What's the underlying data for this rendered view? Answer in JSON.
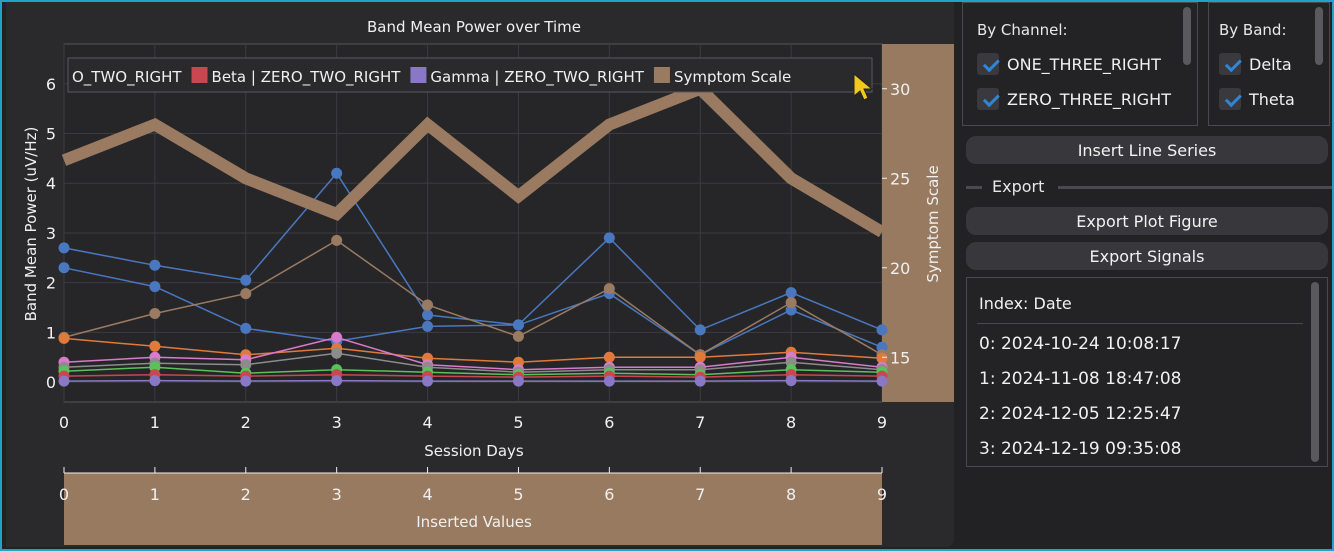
{
  "plot": {
    "title": "Band Mean Power over Time",
    "legend": [
      {
        "label": "O_TWO_RIGHT",
        "color": null
      },
      {
        "label": "Beta  | ZERO_TWO_RIGHT",
        "color": "#c9474f"
      },
      {
        "label": "Gamma | ZERO_TWO_RIGHT",
        "color": "#8a78c6"
      },
      {
        "label": "Symptom Scale",
        "color": "#9a7b62"
      }
    ],
    "inserted_label": "Inserted Values"
  },
  "chart_data": {
    "type": "line",
    "xlabel": "Session Days",
    "ylabel": "Band Mean Power (uV/Hz)",
    "y2label": "Symptom Scale",
    "x": [
      0,
      1,
      2,
      3,
      4,
      5,
      6,
      7,
      8,
      9
    ],
    "xlim": [
      0,
      9
    ],
    "ylim": [
      -0.4,
      6.8
    ],
    "y2lim": [
      12.5,
      32.5
    ],
    "yticks": [
      0,
      1,
      2,
      3,
      4,
      5,
      6
    ],
    "y2ticks": [
      15,
      20,
      25,
      30
    ],
    "grid": true,
    "legend_position": "top",
    "series": [
      {
        "name": "",
        "axis": "left",
        "color": "#4a78c0",
        "values": [
          2.7,
          2.35,
          2.05,
          4.2,
          1.35,
          1.15,
          2.9,
          1.05,
          1.8,
          1.05
        ]
      },
      {
        "name": "",
        "axis": "left",
        "color": "#4a78c0",
        "values": [
          2.3,
          1.92,
          1.08,
          0.82,
          1.12,
          1.15,
          1.78,
          0.55,
          1.45,
          0.7
        ]
      },
      {
        "name": "",
        "axis": "left",
        "color": "#9a7b62",
        "values": [
          0.9,
          1.38,
          1.78,
          2.85,
          1.55,
          0.92,
          1.88,
          0.55,
          1.6,
          0.55
        ]
      },
      {
        "name": "",
        "axis": "left",
        "color": "#e07a3a",
        "values": [
          0.88,
          0.72,
          0.55,
          0.68,
          0.48,
          0.4,
          0.5,
          0.5,
          0.6,
          0.48
        ]
      },
      {
        "name": "",
        "axis": "left",
        "color": "#d97acb",
        "values": [
          0.4,
          0.5,
          0.45,
          0.9,
          0.35,
          0.25,
          0.3,
          0.3,
          0.5,
          0.3
        ]
      },
      {
        "name": "",
        "axis": "left",
        "color": "#8c8c8c",
        "values": [
          0.3,
          0.38,
          0.35,
          0.58,
          0.3,
          0.2,
          0.25,
          0.25,
          0.4,
          0.25
        ]
      },
      {
        "name": "",
        "axis": "left",
        "color": "#59c25a",
        "values": [
          0.22,
          0.3,
          0.18,
          0.25,
          0.2,
          0.15,
          0.18,
          0.15,
          0.25,
          0.2
        ]
      },
      {
        "name": "",
        "axis": "left",
        "color": "#c9474f",
        "values": [
          0.12,
          0.15,
          0.12,
          0.15,
          0.12,
          0.1,
          0.12,
          0.1,
          0.15,
          0.12
        ]
      },
      {
        "name": "",
        "axis": "left",
        "color": "#8a78c6",
        "values": [
          0.02,
          0.03,
          0.02,
          0.03,
          0.02,
          0.02,
          0.02,
          0.02,
          0.03,
          0.02
        ]
      },
      {
        "name": "Symptom Scale",
        "axis": "right",
        "color": "#9a7b62",
        "values": [
          26,
          28,
          25,
          23,
          28,
          24,
          28,
          30,
          25,
          22
        ]
      }
    ]
  },
  "sidebar": {
    "by_channel": {
      "title": "By Channel:",
      "items": [
        "ONE_THREE_RIGHT",
        "ZERO_THREE_RIGHT"
      ]
    },
    "by_band": {
      "title": "By Band:",
      "items": [
        "Delta",
        "Theta"
      ]
    },
    "insert_button": "Insert Line Series",
    "export_label": "Export",
    "export_plot_button": "Export Plot Figure",
    "export_signals_button": "Export Signals",
    "index_header": "Index: Date",
    "sessions": [
      "0: 2024-10-24 10:08:17",
      "1: 2024-11-08 18:47:08",
      "2: 2024-12-05 12:25:47",
      "3: 2024-12-19 09:35:08"
    ]
  }
}
